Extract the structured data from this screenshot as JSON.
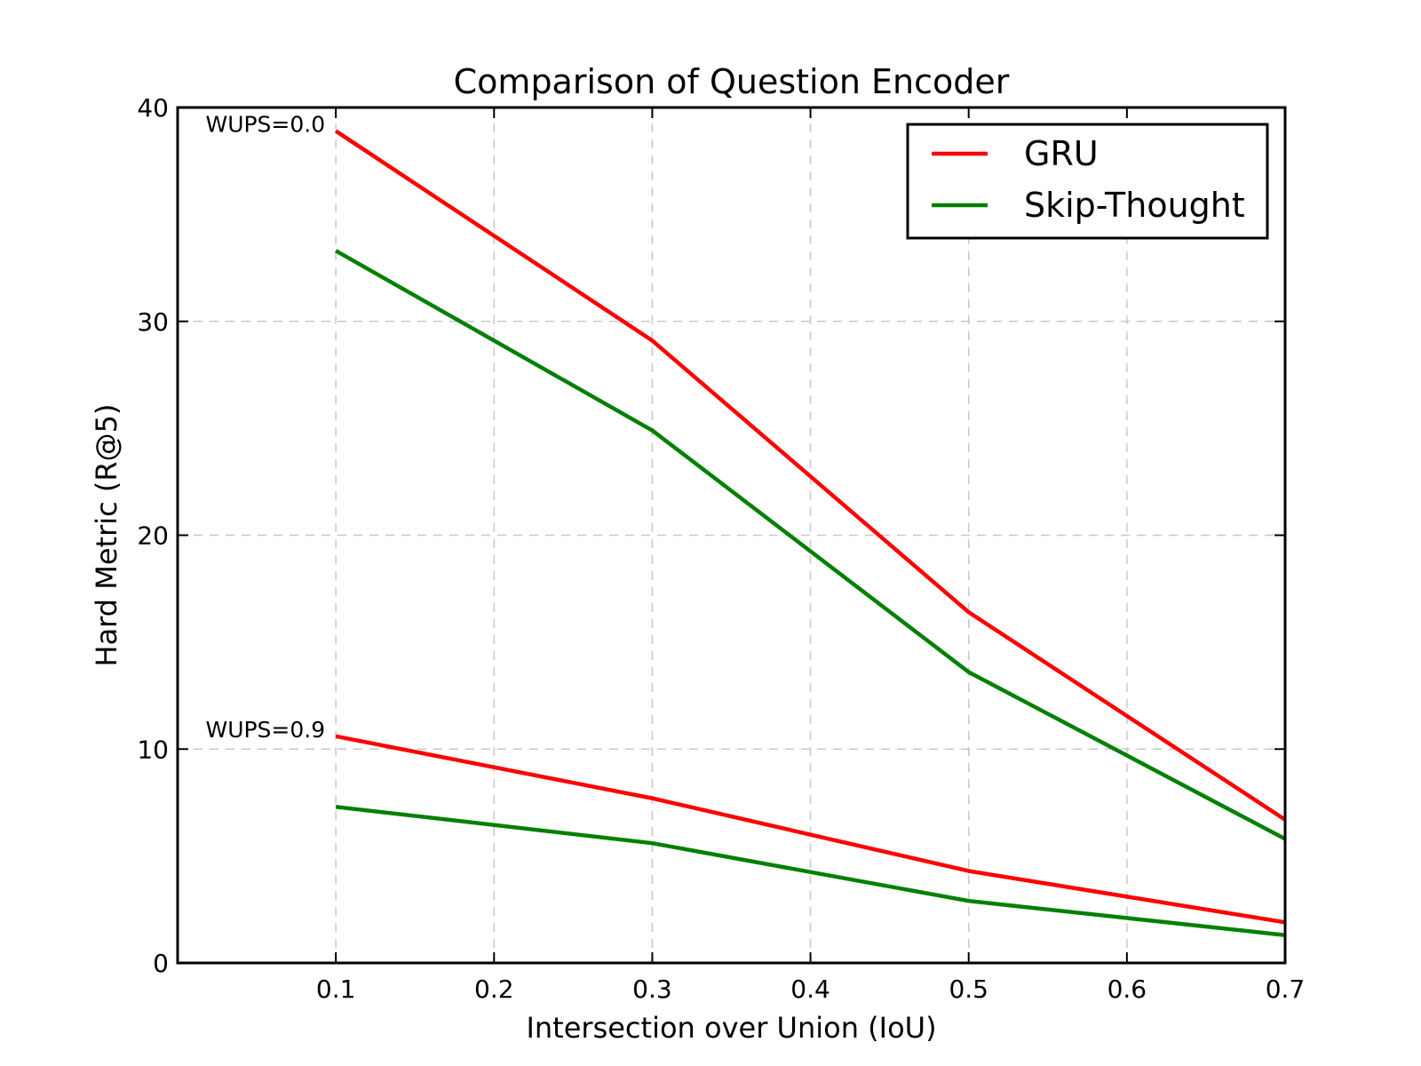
{
  "chart_data": {
    "type": "line",
    "title": "Comparison of Question Encoder",
    "xlabel": "Intersection over Union (IoU)",
    "ylabel": "Hard Metric (R@5)",
    "xlim": [
      0.0,
      0.7
    ],
    "ylim": [
      0,
      40
    ],
    "xticks": [
      "0.1",
      "0.2",
      "0.3",
      "0.4",
      "0.5",
      "0.6",
      "0.7"
    ],
    "yticks": [
      "0",
      "10",
      "20",
      "30",
      "40"
    ],
    "grid": true,
    "legend_position": "top-right",
    "x": [
      0.1,
      0.3,
      0.5,
      0.7
    ],
    "series": [
      {
        "name": "GRU",
        "group": "WUPS=0.0",
        "color": "#ff0000",
        "values": [
          38.9,
          29.1,
          16.4,
          6.7
        ]
      },
      {
        "name": "Skip-Thought",
        "group": "WUPS=0.0",
        "color": "#008000",
        "values": [
          33.3,
          24.9,
          13.6,
          5.8
        ]
      },
      {
        "name": "GRU",
        "group": "WUPS=0.9",
        "color": "#ff0000",
        "values": [
          10.6,
          7.7,
          4.3,
          1.9
        ]
      },
      {
        "name": "Skip-Thought",
        "group": "WUPS=0.9",
        "color": "#008000",
        "values": [
          7.3,
          5.6,
          2.9,
          1.3
        ]
      }
    ],
    "legend": [
      {
        "label": "GRU",
        "color": "#ff0000"
      },
      {
        "label": "Skip-Thought",
        "color": "#008000"
      }
    ],
    "annotations": [
      {
        "text": "WUPS=0.0",
        "x": 0.1,
        "y": 38.9
      },
      {
        "text": "WUPS=0.9",
        "x": 0.1,
        "y": 10.6
      }
    ]
  }
}
